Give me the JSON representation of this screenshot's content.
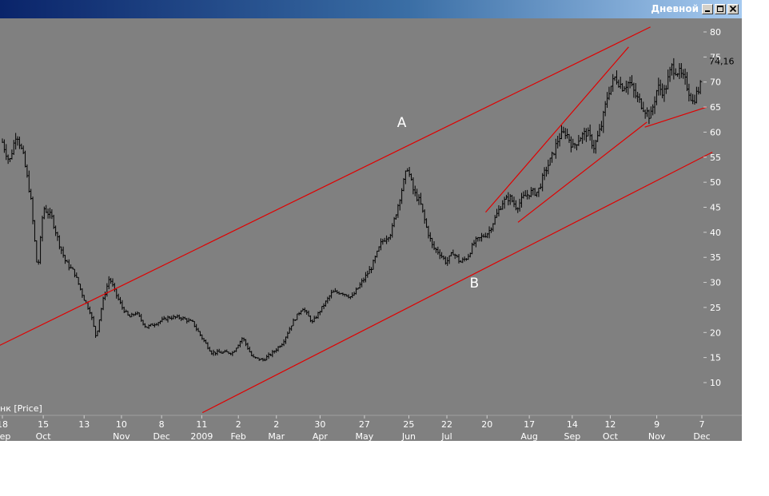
{
  "window": {
    "title": "Дневной",
    "buttons": [
      "minimize",
      "maximize",
      "close"
    ]
  },
  "chart_data": {
    "type": "ohlc",
    "legend": "нк [Price]",
    "current_price_label": "74,16",
    "ylim": [
      5,
      84
    ],
    "y_ticks": [
      {
        "value": 80,
        "label": "80"
      },
      {
        "value": 75,
        "label": "75"
      },
      {
        "value": 70,
        "label": "70"
      },
      {
        "value": 65,
        "label": "65"
      },
      {
        "value": 60,
        "label": "60"
      },
      {
        "value": 55,
        "label": "55"
      },
      {
        "value": 50,
        "label": "50"
      },
      {
        "value": 45,
        "label": "45"
      },
      {
        "value": 40,
        "label": "40"
      },
      {
        "value": 35,
        "label": "35"
      },
      {
        "value": 30,
        "label": "30"
      },
      {
        "value": 25,
        "label": "25"
      },
      {
        "value": 20,
        "label": "20"
      },
      {
        "value": 15,
        "label": "15"
      },
      {
        "value": 10,
        "label": "10"
      }
    ],
    "x_ticks": [
      {
        "day": "18",
        "month": "Sep"
      },
      {
        "day": "15",
        "month": "Oct"
      },
      {
        "day": "13",
        "month": ""
      },
      {
        "day": "10",
        "month": "Nov"
      },
      {
        "day": "8",
        "month": "Dec"
      },
      {
        "day": "11",
        "month": "2009"
      },
      {
        "day": "2",
        "month": "Feb"
      },
      {
        "day": "2",
        "month": "Mar"
      },
      {
        "day": "30",
        "month": "Apr"
      },
      {
        "day": "27",
        "month": "May"
      },
      {
        "day": "25",
        "month": "Jun"
      },
      {
        "day": "22",
        "month": "Jul"
      },
      {
        "day": "20",
        "month": ""
      },
      {
        "day": "17",
        "month": "Aug"
      },
      {
        "day": "14",
        "month": "Sep"
      },
      {
        "day": "12",
        "month": "Oct"
      },
      {
        "day": "9",
        "month": "Nov"
      },
      {
        "day": "7",
        "month": "Dec"
      }
    ],
    "x_range": [
      0,
      100
    ],
    "tick_positions": [
      0,
      5.8,
      11.6,
      16.9,
      22.6,
      28.3,
      33.5,
      38.9,
      45.1,
      51.4,
      57.7,
      63.1,
      68.8,
      74.8,
      80.9,
      86.3,
      92.9,
      99.3
    ],
    "price_path": [
      [
        0,
        58
      ],
      [
        1,
        54
      ],
      [
        2,
        60
      ],
      [
        3,
        55
      ],
      [
        4,
        47
      ],
      [
        5,
        32
      ],
      [
        5.8,
        45
      ],
      [
        7,
        43
      ],
      [
        8,
        38
      ],
      [
        9,
        34
      ],
      [
        10.2,
        32
      ],
      [
        11.5,
        27
      ],
      [
        12.5,
        24
      ],
      [
        13.3,
        19
      ],
      [
        14.2,
        26
      ],
      [
        15.2,
        31
      ],
      [
        16,
        28
      ],
      [
        17,
        25
      ],
      [
        18,
        23
      ],
      [
        19,
        24
      ],
      [
        20.4,
        21
      ],
      [
        22,
        22
      ],
      [
        23.6,
        23
      ],
      [
        25.3,
        23
      ],
      [
        27,
        22
      ],
      [
        28.3,
        19
      ],
      [
        29.7,
        16
      ],
      [
        31.3,
        16
      ],
      [
        32.7,
        16
      ],
      [
        34.1,
        19
      ],
      [
        35.5,
        15
      ],
      [
        37,
        14.5
      ],
      [
        38.4,
        16
      ],
      [
        39.8,
        18
      ],
      [
        41.2,
        22
      ],
      [
        42.6,
        25
      ],
      [
        44,
        22
      ],
      [
        45.4,
        25
      ],
      [
        46.8,
        28
      ],
      [
        48.2,
        28
      ],
      [
        49.6,
        27
      ],
      [
        51,
        30
      ],
      [
        52.4,
        33
      ],
      [
        53.8,
        38
      ],
      [
        55.2,
        40
      ],
      [
        56.6,
        48
      ],
      [
        57.5,
        53
      ],
      [
        58.4,
        48
      ],
      [
        59.3,
        46
      ],
      [
        60.2,
        41
      ],
      [
        61.1,
        37
      ],
      [
        62,
        36
      ],
      [
        63,
        34
      ],
      [
        64,
        36
      ],
      [
        65,
        34
      ],
      [
        66,
        35
      ],
      [
        67,
        38
      ],
      [
        68,
        39
      ],
      [
        69,
        40
      ],
      [
        70,
        43
      ],
      [
        71,
        46
      ],
      [
        72,
        47
      ],
      [
        73,
        45
      ],
      [
        74,
        47
      ],
      [
        75,
        48
      ],
      [
        76,
        48
      ],
      [
        77,
        52
      ],
      [
        78,
        55
      ],
      [
        79,
        59
      ],
      [
        80,
        60
      ],
      [
        81,
        57
      ],
      [
        82,
        59
      ],
      [
        83,
        60
      ],
      [
        84,
        57
      ],
      [
        85,
        61
      ],
      [
        86,
        68
      ],
      [
        87,
        71
      ],
      [
        88,
        69
      ],
      [
        89,
        70
      ],
      [
        90,
        67
      ],
      [
        91,
        65
      ],
      [
        92,
        63
      ],
      [
        93,
        69
      ],
      [
        94,
        68
      ],
      [
        95,
        73
      ],
      [
        96,
        72
      ],
      [
        97,
        70
      ],
      [
        98,
        66
      ],
      [
        99,
        69
      ],
      [
        100,
        72
      ],
      [
        101,
        73
      ],
      [
        102,
        74.16
      ]
    ],
    "trendlines": [
      {
        "name": "upper-channel",
        "from": [
          -1,
          17
        ],
        "to": [
          92,
          81
        ]
      },
      {
        "name": "lower-channel",
        "from": [
          28.4,
          4
        ],
        "to": [
          100.8,
          56
        ]
      },
      {
        "name": "mid-channel-top",
        "from": [
          68.6,
          44
        ],
        "to": [
          88.9,
          77
        ]
      },
      {
        "name": "mid-channel-bottom",
        "from": [
          73.2,
          42
        ],
        "to": [
          91.5,
          62
        ]
      },
      {
        "name": "recent-support",
        "from": [
          91.2,
          61
        ],
        "to": [
          100,
          65
        ]
      }
    ],
    "wave_labels": [
      {
        "text": "A",
        "x": 56.7,
        "y": 61
      },
      {
        "text": "B",
        "x": 67,
        "y": 29
      }
    ]
  }
}
